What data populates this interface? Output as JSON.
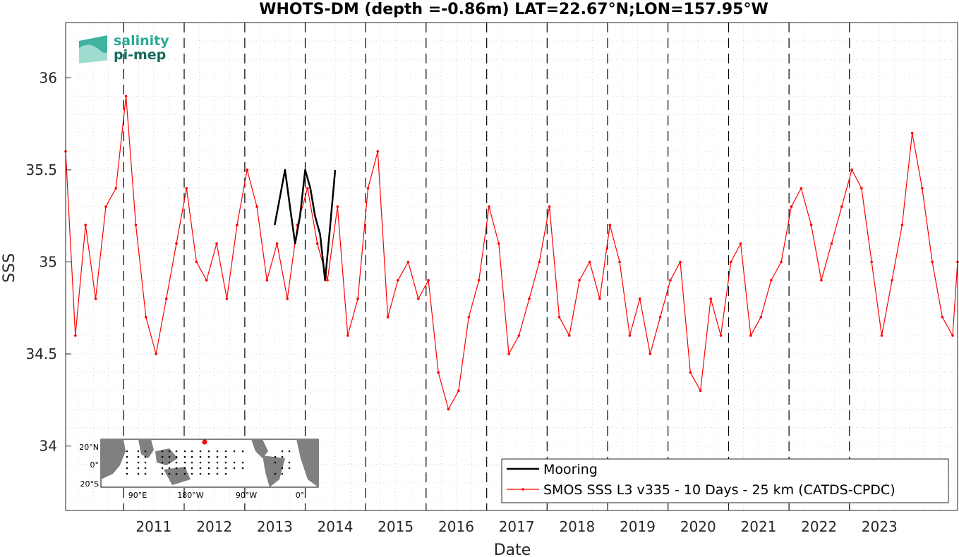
{
  "chart_data": {
    "type": "line",
    "title": "WHOTS-DM (depth =-0.86m) LAT=22.67°N;LON=157.95°W",
    "xlabel": "Date",
    "ylabel": "SSS",
    "xlim": [
      "2010-01-15",
      "2024-10-15"
    ],
    "ylim": [
      33.65,
      36.3
    ],
    "x_ticks": [
      "2011",
      "2012",
      "2013",
      "2014",
      "2015",
      "2016",
      "2017",
      "2018",
      "2019",
      "2020",
      "2021",
      "2022",
      "2023"
    ],
    "y_ticks": [
      34,
      34.5,
      35,
      35.5,
      36
    ],
    "grid": true,
    "legend_position": "bottom-right",
    "year_markers_dashed": true,
    "series": [
      {
        "name": "Mooring",
        "color": "#000000",
        "x": [
          "2013-07-01",
          "2013-08-01",
          "2013-09-01",
          "2013-10-01",
          "2013-11-01",
          "2013-12-01",
          "2014-01-01",
          "2014-02-01",
          "2014-03-01",
          "2014-04-01",
          "2014-05-01",
          "2014-06-01",
          "2014-07-01"
        ],
        "y": [
          35.2,
          35.35,
          35.5,
          35.3,
          35.1,
          35.25,
          35.5,
          35.4,
          35.25,
          35.15,
          34.9,
          35.2,
          35.5
        ]
      },
      {
        "name": "SMOS SSS L3 v335 - 10 Days - 25 km (CATDS-CPDC)",
        "color": "#ff0000",
        "x": [
          "2010-01-15",
          "2010-03-15",
          "2010-05-15",
          "2010-07-15",
          "2010-09-15",
          "2010-11-15",
          "2011-01-15",
          "2011-03-15",
          "2011-05-15",
          "2011-07-15",
          "2011-09-15",
          "2011-11-15",
          "2012-01-15",
          "2012-03-15",
          "2012-05-15",
          "2012-07-15",
          "2012-09-15",
          "2012-11-15",
          "2013-01-15",
          "2013-03-15",
          "2013-05-15",
          "2013-07-15",
          "2013-09-15",
          "2013-11-15",
          "2014-01-15",
          "2014-03-15",
          "2014-05-15",
          "2014-07-15",
          "2014-09-15",
          "2014-11-15",
          "2015-01-15",
          "2015-03-15",
          "2015-05-15",
          "2015-07-15",
          "2015-09-15",
          "2015-11-15",
          "2016-01-15",
          "2016-03-15",
          "2016-05-15",
          "2016-07-15",
          "2016-09-15",
          "2016-11-15",
          "2017-01-15",
          "2017-03-15",
          "2017-05-15",
          "2017-07-15",
          "2017-09-15",
          "2017-11-15",
          "2018-01-15",
          "2018-03-15",
          "2018-05-15",
          "2018-07-15",
          "2018-09-15",
          "2018-11-15",
          "2019-01-15",
          "2019-03-15",
          "2019-05-15",
          "2019-07-15",
          "2019-09-15",
          "2019-11-15",
          "2020-01-15",
          "2020-03-15",
          "2020-05-15",
          "2020-07-15",
          "2020-09-15",
          "2020-11-15",
          "2021-01-15",
          "2021-03-15",
          "2021-05-15",
          "2021-07-15",
          "2021-09-15",
          "2021-11-15",
          "2022-01-15",
          "2022-03-15",
          "2022-05-15",
          "2022-07-15",
          "2022-09-15",
          "2022-11-15",
          "2023-01-15",
          "2023-03-15",
          "2023-05-15",
          "2023-07-15",
          "2023-09-15",
          "2023-11-15",
          "2024-01-15",
          "2024-03-15",
          "2024-05-15",
          "2024-07-15",
          "2024-09-15",
          "2024-10-15"
        ],
        "y": [
          35.6,
          34.6,
          35.2,
          34.8,
          35.3,
          35.4,
          35.9,
          35.2,
          34.7,
          34.5,
          34.8,
          35.1,
          35.4,
          35.0,
          34.9,
          35.1,
          34.8,
          35.2,
          35.5,
          35.3,
          34.9,
          35.1,
          34.8,
          35.2,
          35.4,
          35.1,
          34.9,
          35.3,
          34.6,
          34.8,
          35.4,
          35.6,
          34.7,
          34.9,
          35.0,
          34.8,
          34.9,
          34.4,
          34.2,
          34.3,
          34.7,
          34.9,
          35.3,
          35.1,
          34.5,
          34.6,
          34.8,
          35.0,
          35.3,
          34.7,
          34.6,
          34.9,
          35.0,
          34.8,
          35.2,
          35.0,
          34.6,
          34.8,
          34.5,
          34.7,
          34.9,
          35.0,
          34.4,
          34.3,
          34.8,
          34.6,
          35.0,
          35.1,
          34.6,
          34.7,
          34.9,
          35.0,
          35.3,
          35.4,
          35.2,
          34.9,
          35.1,
          35.3,
          35.5,
          35.4,
          35.0,
          34.6,
          34.9,
          35.2,
          35.7,
          35.4,
          35.0,
          34.7,
          34.6,
          35.0
        ]
      }
    ],
    "inset_map": {
      "lat_labels": [
        "20°N",
        "0°",
        "20°S"
      ],
      "lon_labels": [
        "90°E",
        "180°W",
        "90°W",
        "0°"
      ]
    }
  },
  "logo": {
    "line1": "salinity",
    "line2": "pi-mep",
    "color1": "#2aaa96",
    "color2": "#156b5d"
  },
  "colors": {
    "grid": "#c8c8c8",
    "axis": "#262626",
    "land": "#808080"
  }
}
